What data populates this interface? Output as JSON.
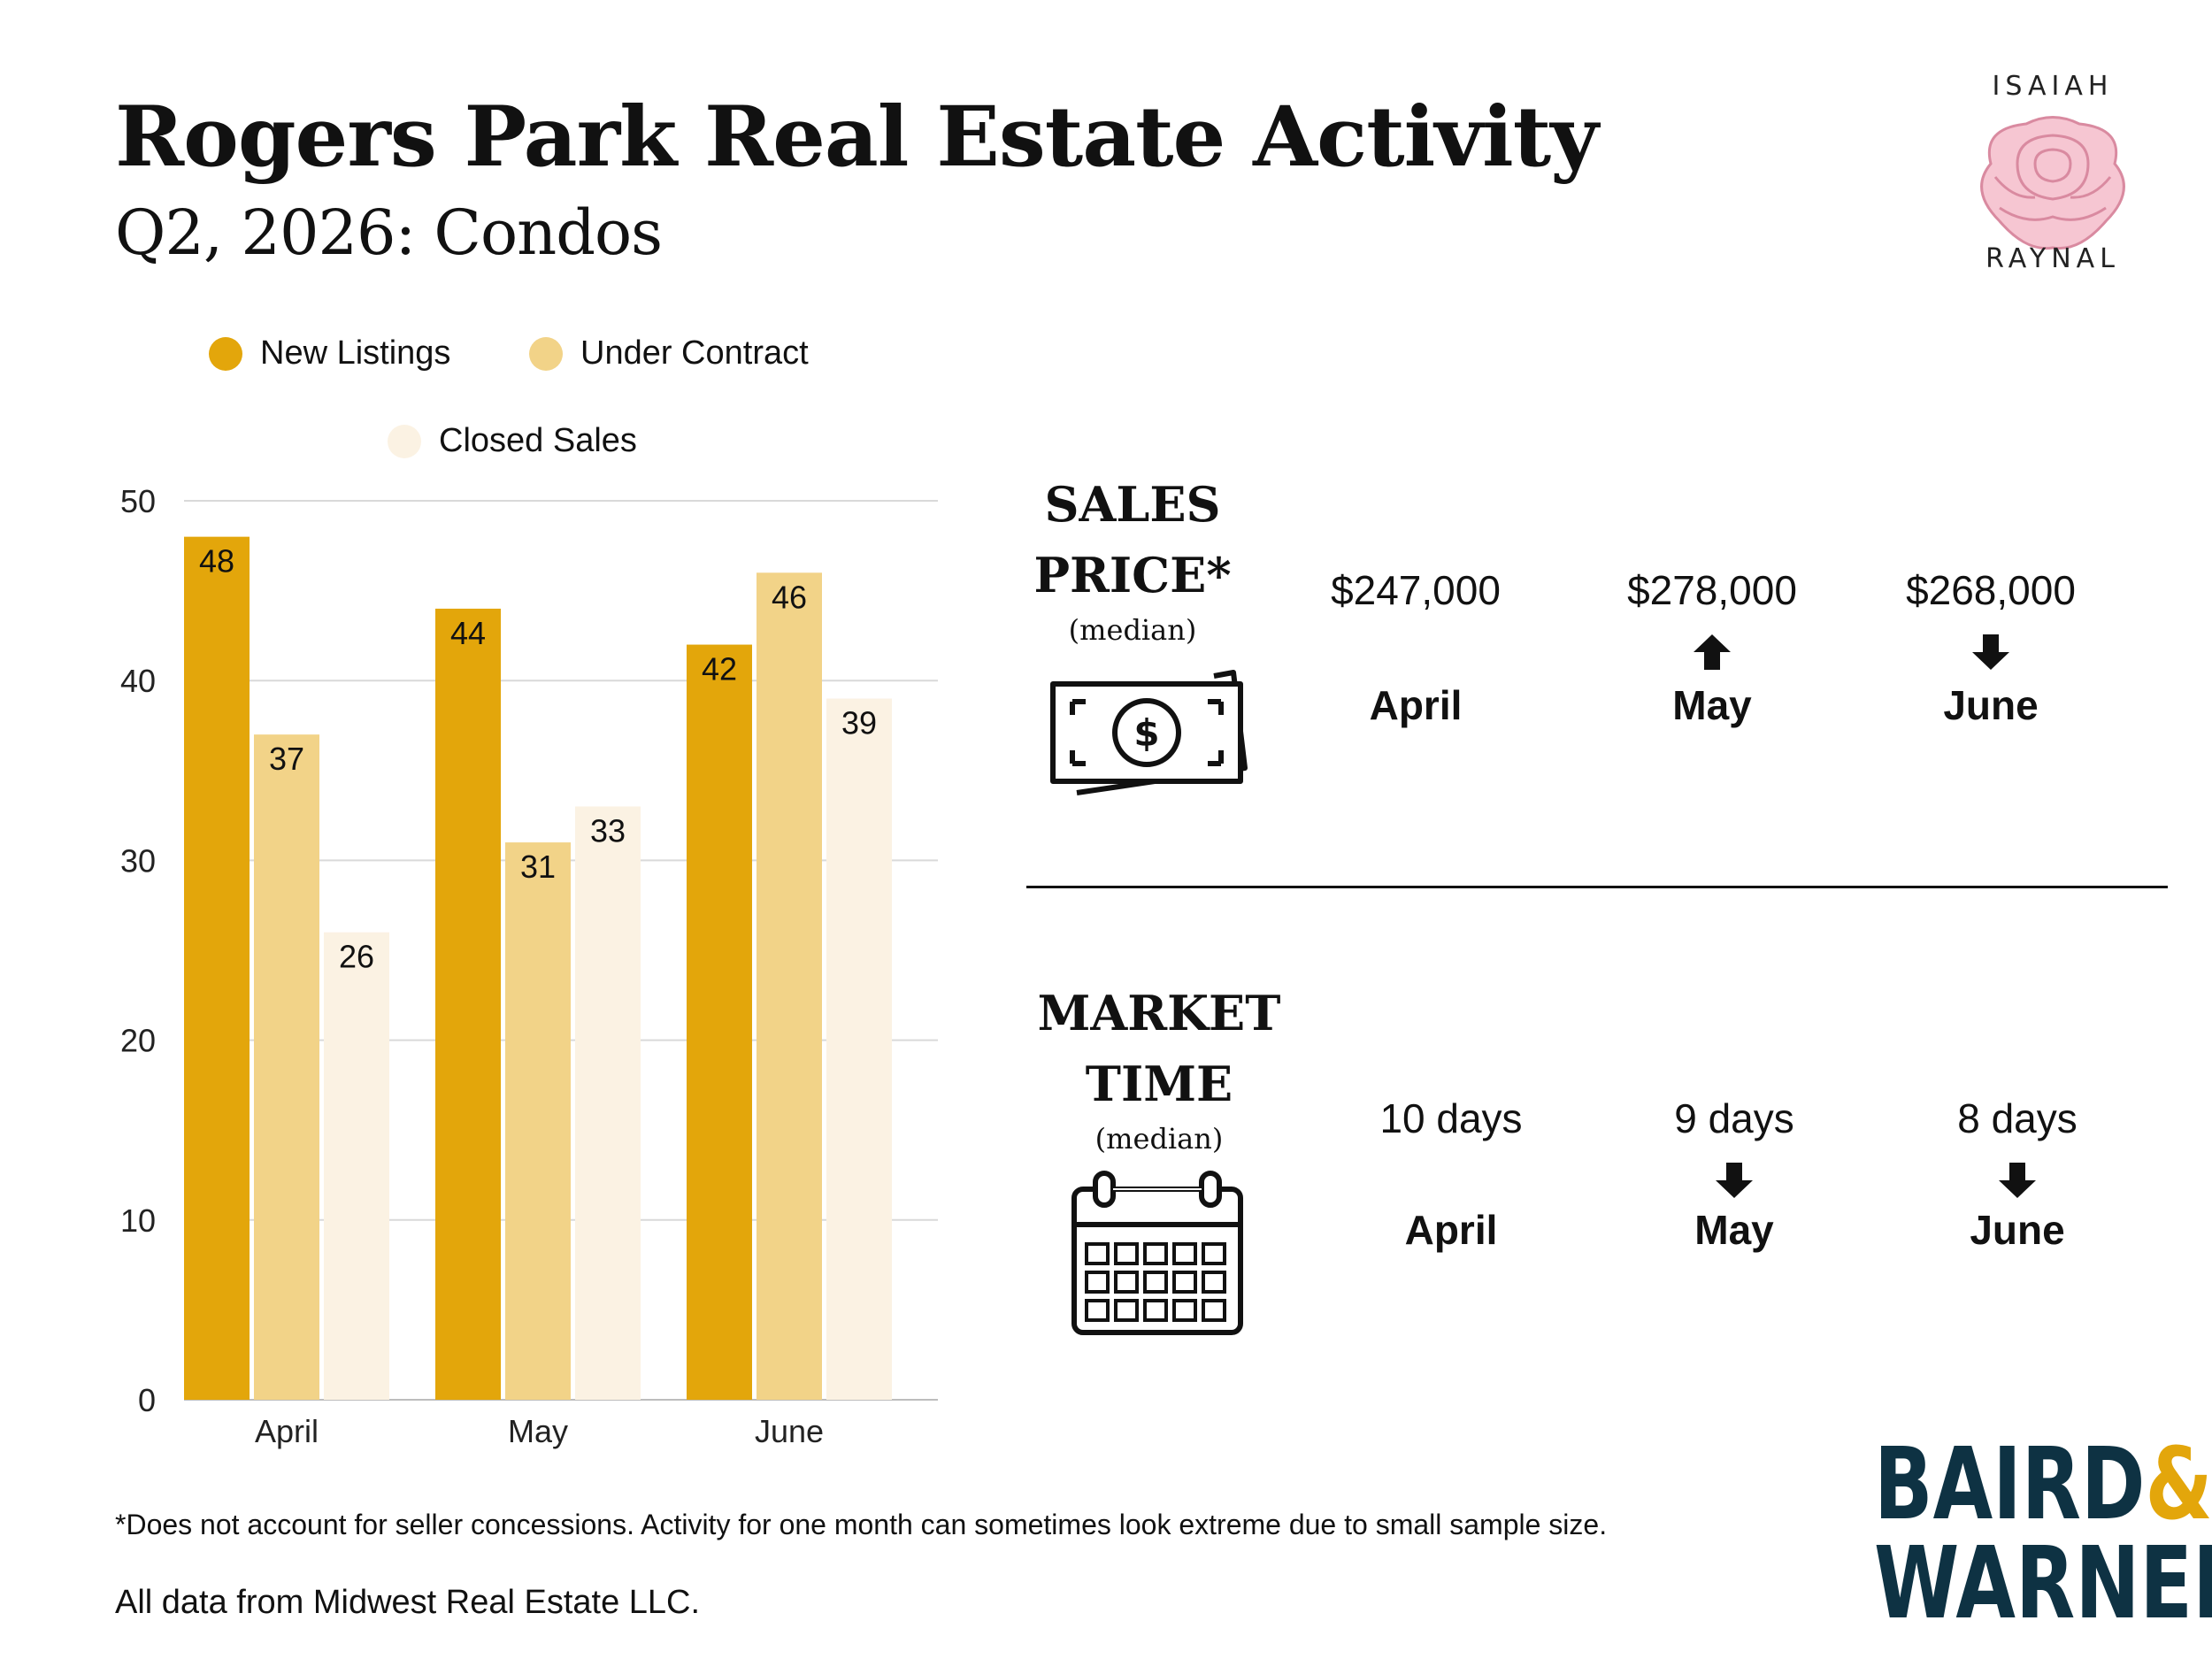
{
  "header": {
    "title": "Rogers Park Real Estate Activity",
    "subtitle": "Q2, 2026: Condos"
  },
  "logo": {
    "top_text": "ISAIAH",
    "bottom_text": "RAYNAL"
  },
  "colors": {
    "new_listings": "#e3a60b",
    "under_contract": "#f2d388",
    "closed_sales": "#fbf2e3",
    "brand_navy": "#0e3243",
    "brand_gold": "#e3a60b",
    "rose": "#f6c6d2"
  },
  "chart_data": {
    "type": "bar",
    "categories": [
      "April",
      "May",
      "June"
    ],
    "series": [
      {
        "name": "New Listings",
        "values": [
          48,
          44,
          42
        ]
      },
      {
        "name": "Under Contract",
        "values": [
          37,
          31,
          46
        ]
      },
      {
        "name": "Closed Sales",
        "values": [
          26,
          33,
          39
        ]
      }
    ],
    "ylim": [
      0,
      50
    ],
    "yticks": [
      0,
      10,
      20,
      30,
      40,
      50
    ],
    "grid": true,
    "legend_position": "top"
  },
  "sales_price": {
    "heading_line1": "SALES",
    "heading_line2": "PRICE*",
    "note": "(median)",
    "icon": "money-icon",
    "entries": [
      {
        "value": "$247,000",
        "month": "April",
        "trend": "none"
      },
      {
        "value": "$278,000",
        "month": "May",
        "trend": "up"
      },
      {
        "value": "$268,000",
        "month": "June",
        "trend": "down"
      }
    ]
  },
  "market_time": {
    "heading_line1": "MARKET",
    "heading_line2": "TIME",
    "note": "(median)",
    "icon": "calendar-icon",
    "entries": [
      {
        "value": "10 days",
        "month": "April",
        "trend": "none"
      },
      {
        "value": "9 days",
        "month": "May",
        "trend": "down"
      },
      {
        "value": "8 days",
        "month": "June",
        "trend": "down"
      }
    ]
  },
  "footer": {
    "footnote": "*Does not account for seller concessions. Activity for one month can sometimes look extreme due to small sample size.",
    "source": "All data from Midwest Real Estate LLC."
  },
  "brand": {
    "line1": "BAIRD",
    "amp": "&",
    "line2": "WARNER"
  }
}
